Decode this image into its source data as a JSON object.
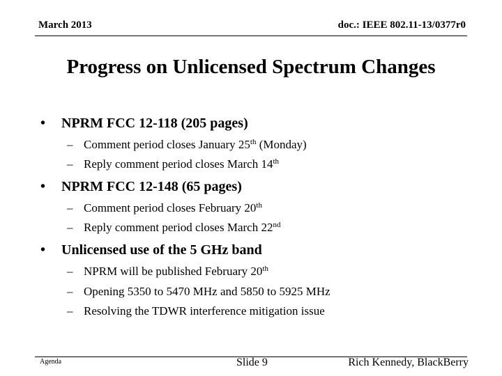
{
  "header": {
    "date": "March 2013",
    "doc_id": "doc.: IEEE 802.11-13/0377r0"
  },
  "title": "Progress on Unlicensed Spectrum Changes",
  "bullets": [
    {
      "dot": "•",
      "text": "NPRM FCC 12-118 (205 pages)",
      "subs": [
        {
          "dash": "–",
          "text": "Comment period closes January 25",
          "sup": "th",
          "after": " (Monday)"
        },
        {
          "dash": "–",
          "text": "Reply comment period closes March 14",
          "sup": "th",
          "after": ""
        }
      ]
    },
    {
      "dot": "•",
      "text": "NPRM FCC 12-148 (65 pages)",
      "subs": [
        {
          "dash": "–",
          "text": "Comment period closes February 20",
          "sup": "th",
          "after": ""
        },
        {
          "dash": "–",
          "text": "Reply comment period closes March 22",
          "sup": "nd",
          "after": ""
        }
      ]
    },
    {
      "dot": "•",
      "text": "Unlicensed use of the 5 GHz band",
      "subs": [
        {
          "dash": "–",
          "text": "NPRM will be published February 20",
          "sup": "th",
          "after": ""
        },
        {
          "dash": "–",
          "text": "Opening 5350 to 5470 MHz and 5850 to 5925 MHz",
          "sup": "",
          "after": ""
        },
        {
          "dash": "–",
          "text": "Resolving the TDWR interference mitigation issue",
          "sup": "",
          "after": ""
        }
      ]
    }
  ],
  "footer": {
    "left": "Agenda",
    "center": "Slide 9",
    "right": "Rich Kennedy, BlackBerry"
  }
}
